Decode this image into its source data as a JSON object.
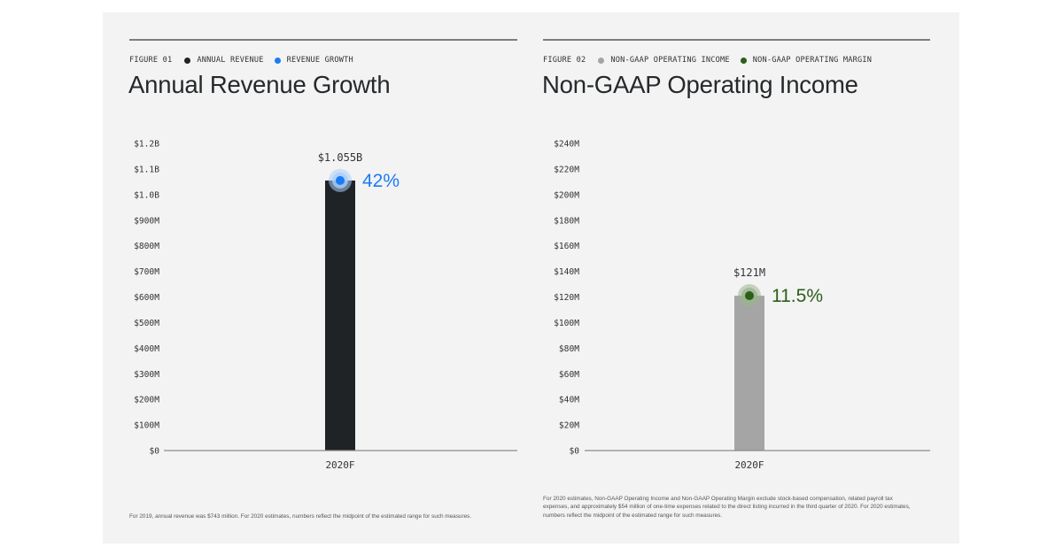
{
  "figures": [
    {
      "figure_label": "FIGURE 01",
      "legend": [
        {
          "label": "ANNUAL REVENUE",
          "color": "#1f2326"
        },
        {
          "label": "REVENUE GROWTH",
          "color": "#1a7cf5"
        }
      ],
      "title": "Annual Revenue Growth",
      "footnote": "For 2019, annual revenue was $743 million. For 2020 estimates, numbers reflect the midpoint of the estimated range for such measures."
    },
    {
      "figure_label": "FIGURE 02",
      "legend": [
        {
          "label": "NON-GAAP OPERATING INCOME",
          "color": "#a5a5a5"
        },
        {
          "label": "NON-GAAP OPERATING MARGIN",
          "color": "#2c5e1a"
        }
      ],
      "title": "Non-GAAP Operating Income",
      "footnote": "For 2020 estimates, Non-GAAP Operating Income and Non-GAAP Operating Margin exclude stock-based compensation, related payroll tax expenses, and approximately $54 million of one-time expenses related to the direct listing incurred in the third quarter of 2020. For 2020 estimates, numbers reflect the midpoint of the estimated range for such measures."
    }
  ],
  "chart_data": [
    {
      "type": "bar",
      "title": "Annual Revenue Growth",
      "xlabel": "",
      "ylabel": "",
      "categories": [
        "2020F"
      ],
      "series": [
        {
          "name": "Annual Revenue",
          "values": [
            1055
          ],
          "unit": "USD millions",
          "color": "#1f2326"
        }
      ],
      "value_labels": [
        "$1.055B"
      ],
      "growth": {
        "name": "Revenue Growth",
        "values": [
          42
        ],
        "labels": [
          "42%"
        ],
        "color": "#1a7cf5",
        "halo": "#a9cdfa"
      },
      "ylim": [
        0,
        1200
      ],
      "yticks": [
        0,
        100,
        200,
        300,
        400,
        500,
        600,
        700,
        800,
        900,
        1000,
        1100,
        1200
      ],
      "ytick_labels": [
        "$0",
        "$100M",
        "$200M",
        "$300M",
        "$400M",
        "$500M",
        "$600M",
        "$700M",
        "$800M",
        "$900M",
        "$1.0B",
        "$1.1B",
        "$1.2B"
      ],
      "grid": false,
      "legend_position": "top-left"
    },
    {
      "type": "bar",
      "title": "Non-GAAP Operating Income",
      "xlabel": "",
      "ylabel": "",
      "categories": [
        "2020F"
      ],
      "series": [
        {
          "name": "Non-GAAP Operating Income",
          "values": [
            121
          ],
          "unit": "USD millions",
          "color": "#a5a5a5"
        }
      ],
      "value_labels": [
        "$121M"
      ],
      "growth": {
        "name": "Non-GAAP Operating Margin",
        "values": [
          11.5
        ],
        "labels": [
          "11.5%"
        ],
        "color": "#2c5e1a",
        "halo": "#9ab48f"
      },
      "ylim": [
        0,
        240
      ],
      "yticks": [
        0,
        20,
        40,
        60,
        80,
        100,
        120,
        140,
        160,
        180,
        200,
        220,
        240
      ],
      "ytick_labels": [
        "$0",
        "$20M",
        "$40M",
        "$60M",
        "$80M",
        "$100M",
        "$120M",
        "$140M",
        "$160M",
        "$180M",
        "$200M",
        "$220M",
        "$240M"
      ],
      "grid": false,
      "legend_position": "top-left"
    }
  ]
}
